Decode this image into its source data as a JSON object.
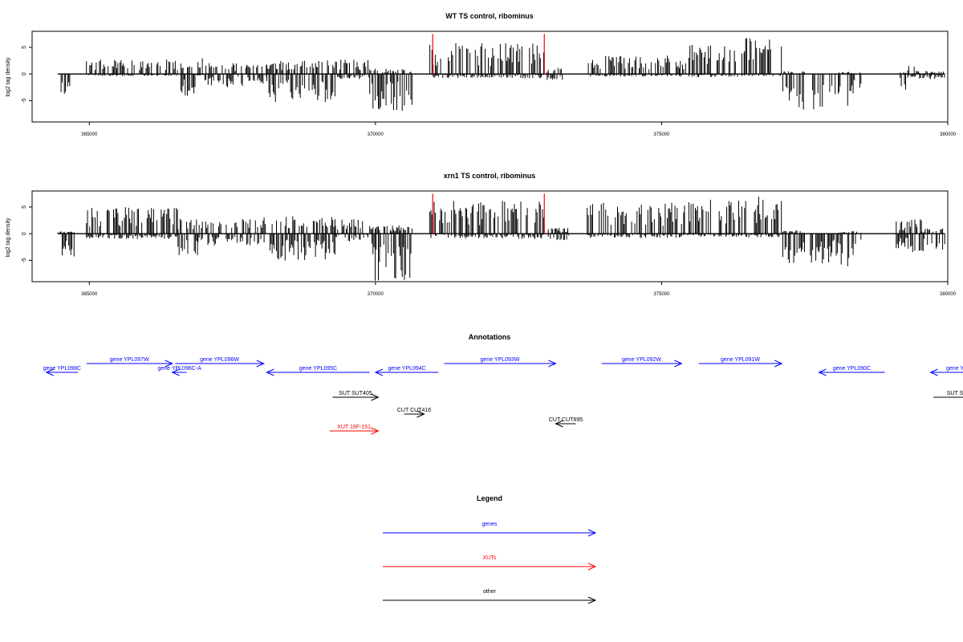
{
  "chart_data": [
    {
      "type": "bar",
      "title": "WT TS control, ribominus",
      "xlabel": "",
      "ylabel": "log2 tag density",
      "xlim": [
        364000,
        380000
      ],
      "ylim": [
        -9,
        8
      ],
      "x_ticks": [
        365000,
        370000,
        375000,
        380000
      ],
      "x_tick_labels": [
        "365000",
        "370000",
        "375000",
        "380000"
      ],
      "y_ticks": [
        -5,
        0,
        5
      ],
      "y_tick_labels": [
        "-5",
        "0",
        "5"
      ],
      "series": [
        {
          "color": "#000000",
          "segments": [
            {
              "start": 364450,
              "end": 364700,
              "pos": 0.0,
              "neg": -4.2
            },
            {
              "start": 364950,
              "end": 366550,
              "pos": 2.7,
              "neg": -0.4
            },
            {
              "start": 366600,
              "end": 366850,
              "pos": 2.2,
              "neg": -4.2
            },
            {
              "start": 366880,
              "end": 367000,
              "pos": 3.0,
              "neg": -0.3
            },
            {
              "start": 367000,
              "end": 367600,
              "pos": 2.1,
              "neg": -2.5
            },
            {
              "start": 367600,
              "end": 368100,
              "pos": 1.8,
              "neg": -2.3
            },
            {
              "start": 368100,
              "end": 369300,
              "pos": 2.6,
              "neg": -5.5
            },
            {
              "start": 369300,
              "end": 369900,
              "pos": 2.8,
              "neg": -1.0
            },
            {
              "start": 369900,
              "end": 370650,
              "pos": 1.0,
              "neg": -7.2
            },
            {
              "start": 370950,
              "end": 372950,
              "pos": 5.8,
              "neg": -0.8
            },
            {
              "start": 373000,
              "end": 373300,
              "pos": 1.2,
              "neg": -1.2
            },
            {
              "start": 373700,
              "end": 375400,
              "pos": 3.5,
              "neg": -0.5
            },
            {
              "start": 375400,
              "end": 376450,
              "pos": 5.5,
              "neg": -0.6
            },
            {
              "start": 376450,
              "end": 377100,
              "pos": 6.8,
              "neg": -0.4
            },
            {
              "start": 377100,
              "end": 377500,
              "pos": 0.5,
              "neg": -7.2
            },
            {
              "start": 377600,
              "end": 377850,
              "pos": 0.0,
              "neg": -6.8
            },
            {
              "start": 377900,
              "end": 378100,
              "pos": 0.0,
              "neg": -5.0
            },
            {
              "start": 378100,
              "end": 378350,
              "pos": 0.4,
              "neg": -6.0
            },
            {
              "start": 378350,
              "end": 378500,
              "pos": 0.3,
              "neg": -2.6
            },
            {
              "start": 379150,
              "end": 379300,
              "pos": 0.3,
              "neg": -3.0
            },
            {
              "start": 379300,
              "end": 379450,
              "pos": 1.6,
              "neg": -0.7
            },
            {
              "start": 379450,
              "end": 379950,
              "pos": 0.6,
              "neg": -1.0
            }
          ]
        },
        {
          "color": "#ff0000",
          "x": [
            371000,
            372950
          ],
          "height": 7.5
        }
      ],
      "xrange_data": [
        364450,
        379950
      ]
    },
    {
      "type": "bar",
      "title": "xrn1 TS control, ribominus",
      "xlabel": "",
      "ylabel": "log2 tag density",
      "xlim": [
        364000,
        380000
      ],
      "ylim": [
        -9,
        8
      ],
      "x_ticks": [
        365000,
        370000,
        375000,
        380000
      ],
      "x_tick_labels": [
        "365000",
        "370000",
        "375000",
        "380000"
      ],
      "y_ticks": [
        -5,
        0,
        5
      ],
      "y_tick_labels": [
        "-5",
        "0",
        "5"
      ],
      "series": [
        {
          "color": "#000000",
          "segments": [
            {
              "start": 364450,
              "end": 364750,
              "pos": 0.4,
              "neg": -4.5
            },
            {
              "start": 364950,
              "end": 366550,
              "pos": 5.0,
              "neg": -1.0
            },
            {
              "start": 366550,
              "end": 366900,
              "pos": 2.8,
              "neg": -4.3
            },
            {
              "start": 366900,
              "end": 367600,
              "pos": 2.6,
              "neg": -2.2
            },
            {
              "start": 367600,
              "end": 368100,
              "pos": 3.5,
              "neg": -2.4
            },
            {
              "start": 368100,
              "end": 369300,
              "pos": 3.3,
              "neg": -5.2
            },
            {
              "start": 369300,
              "end": 369900,
              "pos": 3.0,
              "neg": -1.5
            },
            {
              "start": 369900,
              "end": 370650,
              "pos": 1.5,
              "neg": -9.0
            },
            {
              "start": 370950,
              "end": 372950,
              "pos": 6.2,
              "neg": -1.0
            },
            {
              "start": 373000,
              "end": 373400,
              "pos": 1.2,
              "neg": -1.3
            },
            {
              "start": 373700,
              "end": 375400,
              "pos": 5.8,
              "neg": -0.8
            },
            {
              "start": 375400,
              "end": 376450,
              "pos": 6.5,
              "neg": -0.6
            },
            {
              "start": 376450,
              "end": 377100,
              "pos": 7.0,
              "neg": -0.7
            },
            {
              "start": 377100,
              "end": 377500,
              "pos": 0.6,
              "neg": -5.8
            },
            {
              "start": 377600,
              "end": 377850,
              "pos": 0.0,
              "neg": -6.2
            },
            {
              "start": 377900,
              "end": 378100,
              "pos": 0.0,
              "neg": -5.5
            },
            {
              "start": 378100,
              "end": 378350,
              "pos": 0.5,
              "neg": -6.5
            },
            {
              "start": 378350,
              "end": 378500,
              "pos": 0.4,
              "neg": -2.8
            },
            {
              "start": 379100,
              "end": 379350,
              "pos": 2.5,
              "neg": -3.0
            },
            {
              "start": 379350,
              "end": 379550,
              "pos": 2.8,
              "neg": -3.5
            },
            {
              "start": 379550,
              "end": 379950,
              "pos": 1.0,
              "neg": -3.3
            }
          ]
        },
        {
          "color": "#ff0000",
          "x": [
            371000,
            372950
          ],
          "height": 7.5
        }
      ],
      "xrange_data": [
        364450,
        379950
      ]
    }
  ],
  "annotations": {
    "title": "Annotations",
    "features": [
      {
        "label": "gene YPL098C",
        "start": 364800,
        "end": 364250,
        "row": 1,
        "color": "#0000ff"
      },
      {
        "label": "gene YPL097W",
        "start": 364950,
        "end": 366450,
        "row": 0,
        "color": "#0000ff"
      },
      {
        "label": "gene YPL096C-A",
        "start": 366700,
        "end": 366450,
        "row": 1,
        "color": "#0000ff"
      },
      {
        "label": "gene YPL096W",
        "start": 366500,
        "end": 368050,
        "row": 0,
        "color": "#0000ff"
      },
      {
        "label": "gene YPL095C",
        "start": 369900,
        "end": 368100,
        "row": 1,
        "color": "#0000ff"
      },
      {
        "label": "gene YPL094C",
        "start": 371100,
        "end": 370000,
        "row": 1,
        "color": "#0000ff"
      },
      {
        "label": "gene YPL093W",
        "start": 371200,
        "end": 373150,
        "row": 0,
        "color": "#0000ff"
      },
      {
        "label": "gene YPL092W",
        "start": 373950,
        "end": 375350,
        "row": 0,
        "color": "#0000ff"
      },
      {
        "label": "gene YPL091W",
        "start": 375650,
        "end": 377100,
        "row": 0,
        "color": "#0000ff"
      },
      {
        "label": "gene YPL090C",
        "start": 378900,
        "end": 377750,
        "row": 1,
        "color": "#0000ff"
      },
      {
        "label": "gene Y",
        "start": 381000,
        "end": 379700,
        "row": 1,
        "color": "#0000ff"
      },
      {
        "label": "SUT SUT405",
        "start": 369250,
        "end": 370050,
        "row": 2,
        "color": "#000000"
      },
      {
        "label": "SUT S",
        "start": 379750,
        "end": 381000,
        "row": 2,
        "color": "#000000"
      },
      {
        "label": "CUT CUT416",
        "start": 370500,
        "end": 370850,
        "row": 3,
        "color": "#000000"
      },
      {
        "label": "CUT CUT895",
        "start": 373500,
        "end": 373150,
        "row": 4,
        "color": "#000000"
      },
      {
        "label": "XUT 16F-151",
        "start": 369200,
        "end": 370050,
        "row": 5,
        "color": "#ff0000"
      }
    ]
  },
  "legend": {
    "title": "Legend",
    "items": [
      {
        "label": "genes",
        "color": "#0000ff"
      },
      {
        "label": "XUTs",
        "color": "#ff0000"
      },
      {
        "label": "other",
        "color": "#000000"
      }
    ]
  }
}
